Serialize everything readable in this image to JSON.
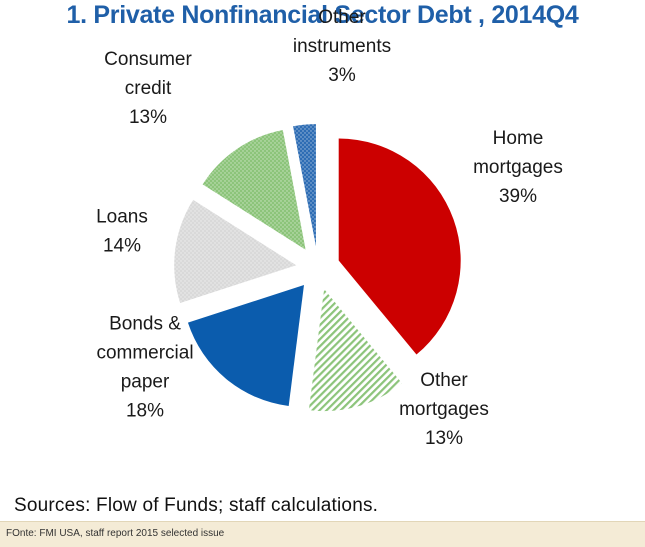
{
  "title": "1. Private Nonfinancial Sector Debt , 2014Q4",
  "sources": "Sources: Flow of Funds; staff calculations.",
  "footer": "FOnte: FMI USA, staff report 2015 selected issue",
  "colors": {
    "title": "#1f5fa8",
    "home_mortgages": "#cc0000",
    "other_mortgages": "#8cc47a",
    "bonds_commercial_paper": "#0b5cad",
    "loans": "#d9d9d9",
    "consumer_credit": "#8cc47a",
    "other_instruments": "#2e6db4",
    "footer_band": "#f4ebd6"
  },
  "chart_data": {
    "type": "pie",
    "title": "1. Private Nonfinancial Sector Debt , 2014Q4",
    "exploded": true,
    "start_angle_deg": 0,
    "direction": "clockwise",
    "slices": [
      {
        "lines": [
          "Home",
          "mortgages",
          "39%"
        ],
        "value": 39,
        "color": "#cc0000",
        "pattern": "solid"
      },
      {
        "lines": [
          "Other",
          "mortgages",
          "13%"
        ],
        "value": 13,
        "color": "#8cc47a",
        "pattern": "hatch"
      },
      {
        "lines": [
          "Bonds &",
          "commercial",
          "paper",
          "18%"
        ],
        "value": 18,
        "color": "#0b5cad",
        "pattern": "solid"
      },
      {
        "lines": [
          "Loans",
          "14%"
        ],
        "value": 14,
        "color": "#d9d9d9",
        "pattern": "dots"
      },
      {
        "lines": [
          "Consumer",
          "credit",
          "13%"
        ],
        "value": 13,
        "color": "#8cc47a",
        "pattern": "dots"
      },
      {
        "lines": [
          "Other",
          "instruments",
          "3%"
        ],
        "value": 3,
        "color": "#2e6db4",
        "pattern": "dots"
      }
    ]
  }
}
